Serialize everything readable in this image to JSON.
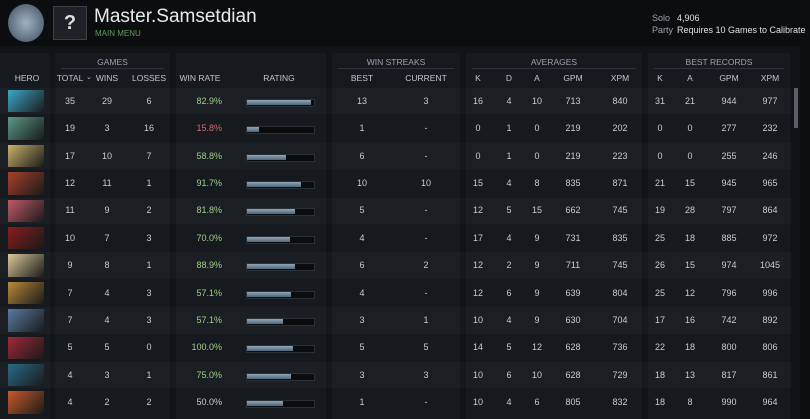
{
  "header": {
    "badge": "?",
    "player_name": "Master.Samsetdian",
    "menu_link": "MAIN MENU",
    "stats": [
      {
        "label": "Solo",
        "value": "4,906"
      },
      {
        "label": "Party",
        "value": "Requires 10 Games to Calibrate"
      }
    ]
  },
  "table": {
    "groups": [
      "GAMES",
      "WIN STREAKS",
      "AVERAGES",
      "BEST RECORDS"
    ],
    "columns": [
      "HERO",
      "TOTAL",
      "WINS",
      "LOSSES",
      "WIN RATE",
      "RATING",
      "BEST",
      "CURRENT",
      "K",
      "D",
      "A",
      "GPM",
      "XPM",
      "K",
      "A",
      "GPM",
      "XPM"
    ],
    "rows": [
      [
        35,
        29,
        6,
        "82.9%",
        13,
        3,
        16,
        4,
        10,
        713,
        840,
        31,
        21,
        944,
        977
      ],
      [
        19,
        3,
        16,
        "15.8%",
        1,
        "-",
        0,
        1,
        0,
        219,
        202,
        0,
        0,
        277,
        232
      ],
      [
        17,
        10,
        7,
        "58.8%",
        6,
        "-",
        0,
        1,
        0,
        219,
        223,
        0,
        0,
        255,
        246
      ],
      [
        12,
        11,
        1,
        "91.7%",
        10,
        10,
        15,
        4,
        8,
        835,
        871,
        21,
        15,
        945,
        965
      ],
      [
        11,
        9,
        2,
        "81.8%",
        5,
        "-",
        12,
        5,
        15,
        662,
        745,
        19,
        28,
        797,
        864
      ],
      [
        10,
        7,
        3,
        "70.0%",
        4,
        "-",
        17,
        4,
        9,
        731,
        835,
        25,
        18,
        885,
        972
      ],
      [
        9,
        8,
        1,
        "88.9%",
        6,
        2,
        12,
        2,
        9,
        711,
        745,
        26,
        15,
        974,
        1045
      ],
      [
        7,
        4,
        3,
        "57.1%",
        4,
        "-",
        12,
        6,
        9,
        639,
        804,
        25,
        12,
        796,
        996
      ],
      [
        7,
        4,
        3,
        "57.1%",
        3,
        1,
        10,
        4,
        9,
        630,
        704,
        17,
        16,
        742,
        892
      ],
      [
        5,
        5,
        0,
        "100.0%",
        5,
        5,
        14,
        5,
        12,
        628,
        736,
        22,
        18,
        800,
        806
      ],
      [
        4,
        3,
        1,
        "75.0%",
        3,
        3,
        10,
        6,
        10,
        628,
        729,
        18,
        13,
        817,
        861
      ],
      [
        4,
        2,
        2,
        "50.0%",
        1,
        "-",
        10,
        4,
        6,
        805,
        832,
        18,
        8,
        990,
        964
      ]
    ],
    "rating": [
      95,
      18,
      58,
      80,
      72,
      64,
      72,
      65,
      54,
      68,
      65,
      54
    ]
  }
}
